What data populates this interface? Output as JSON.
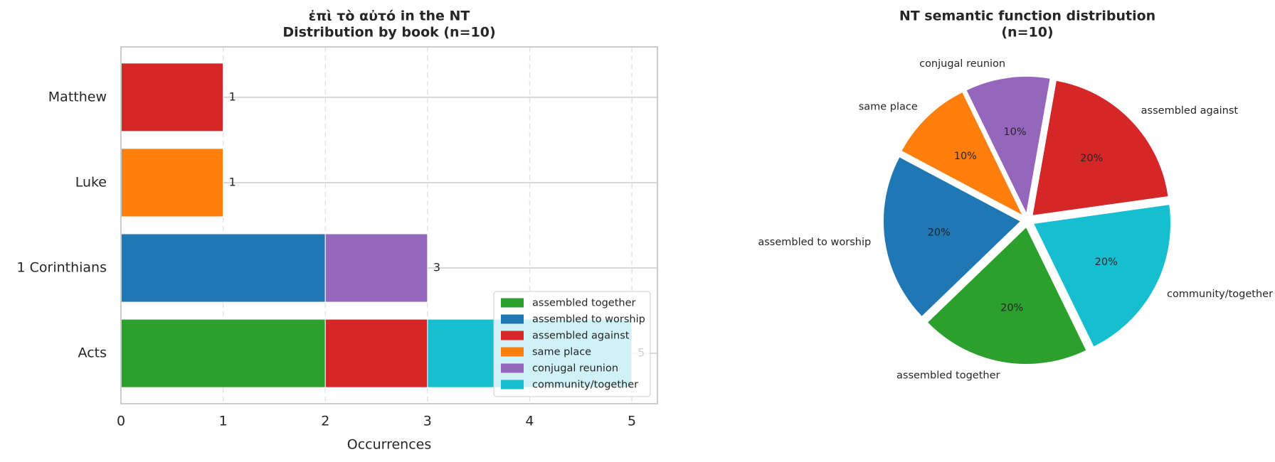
{
  "chart_data": [
    {
      "type": "stacked-barh",
      "title": "ἐπὶ τὸ αὐτό in the NT",
      "subtitle": "Distribution by book (n=10)",
      "xlabel": "Occurrences",
      "categories": [
        "Matthew",
        "Luke",
        "1 Corinthians",
        "Acts"
      ],
      "series": [
        {
          "name": "assembled together",
          "color": "#2ca02c",
          "values": [
            0,
            0,
            0,
            2
          ]
        },
        {
          "name": "assembled to worship",
          "color": "#1f77b4",
          "values": [
            0,
            0,
            2,
            0
          ]
        },
        {
          "name": "assembled against",
          "color": "#d62728",
          "values": [
            1,
            0,
            0,
            1
          ]
        },
        {
          "name": "same place",
          "color": "#ff7f0e",
          "values": [
            0,
            1,
            0,
            0
          ]
        },
        {
          "name": "conjugal reunion",
          "color": "#9467bd",
          "values": [
            0,
            0,
            1,
            0
          ]
        },
        {
          "name": "community/together",
          "color": "#17becf",
          "values": [
            0,
            0,
            0,
            2
          ]
        }
      ],
      "totals": [
        1,
        1,
        3,
        5
      ],
      "xlim": [
        0,
        5.25
      ],
      "xticks": [
        0,
        1,
        2,
        3,
        4,
        5
      ],
      "grid": true,
      "legend": "lower right"
    },
    {
      "type": "pie",
      "title": "NT semantic function distribution",
      "subtitle": "(n=10)",
      "labels": [
        "assembled together",
        "community/together",
        "assembled against",
        "conjugal reunion",
        "same place",
        "assembled to worship"
      ],
      "colors": [
        "#2ca02c",
        "#17becf",
        "#d62728",
        "#9467bd",
        "#ff7f0e",
        "#1f77b4"
      ],
      "values": [
        20,
        20,
        20,
        10,
        10,
        20
      ],
      "value_labels": [
        "20%",
        "20%",
        "20%",
        "10%",
        "10%",
        "20%"
      ],
      "startangle": -136,
      "explode": 0.05
    }
  ]
}
